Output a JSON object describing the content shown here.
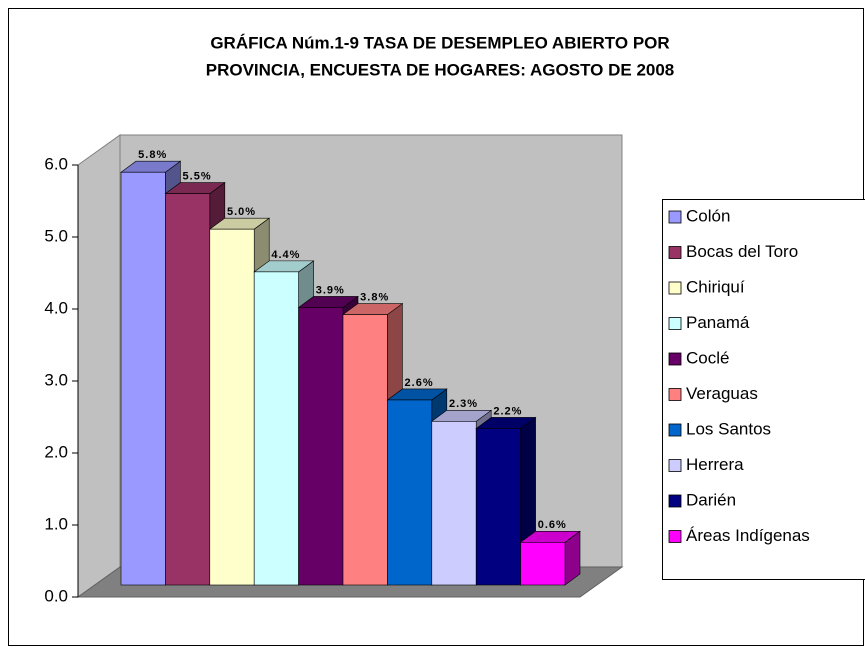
{
  "chart_data": {
    "type": "bar3d",
    "title": [
      "GRÁFICA Núm.1-9 TASA DE DESEMPLEO ABIERTO POR",
      "PROVINCIA, ENCUESTA DE HOGARES: AGOSTO DE 2008"
    ],
    "ylim": [
      0,
      6
    ],
    "yticks": [
      {
        "value": 0,
        "label": "0.0"
      },
      {
        "value": 1,
        "label": "1.0"
      },
      {
        "value": 2,
        "label": "2.0"
      },
      {
        "value": 3,
        "label": "3.0"
      },
      {
        "value": 4,
        "label": "4.0"
      },
      {
        "value": 5,
        "label": "5.0"
      },
      {
        "value": 6,
        "label": "6.0"
      }
    ],
    "legend": "right",
    "series": [
      {
        "name": "Colón",
        "color": "#9999ff",
        "values": [
          5.8
        ],
        "value_labels": [
          "5.8%"
        ]
      },
      {
        "name": "Bocas del Toro",
        "color": "#993366",
        "values": [
          5.5
        ],
        "value_labels": [
          "5.5%"
        ]
      },
      {
        "name": "Chiriquí",
        "color": "#ffffcc",
        "values": [
          5.0
        ],
        "value_labels": [
          "5.0%"
        ]
      },
      {
        "name": "Panamá",
        "color": "#ccffff",
        "values": [
          4.4
        ],
        "value_labels": [
          "4.4%"
        ]
      },
      {
        "name": "Coclé",
        "color": "#660066",
        "values": [
          3.9
        ],
        "value_labels": [
          "3.9%"
        ]
      },
      {
        "name": "Veraguas",
        "color": "#ff8080",
        "values": [
          3.8
        ],
        "value_labels": [
          "3.8%"
        ]
      },
      {
        "name": "Los Santos",
        "color": "#0066cc",
        "values": [
          2.6
        ],
        "value_labels": [
          "2.6%"
        ]
      },
      {
        "name": "Herrera",
        "color": "#ccccff",
        "values": [
          2.3
        ],
        "value_labels": [
          "2.3%"
        ]
      },
      {
        "name": "Darién",
        "color": "#000080",
        "values": [
          2.2
        ],
        "value_labels": [
          "2.2%"
        ]
      },
      {
        "name": "Áreas Indígenas",
        "color": "#ff00ff",
        "values": [
          0.6
        ],
        "value_labels": [
          "0.6%"
        ]
      }
    ]
  }
}
